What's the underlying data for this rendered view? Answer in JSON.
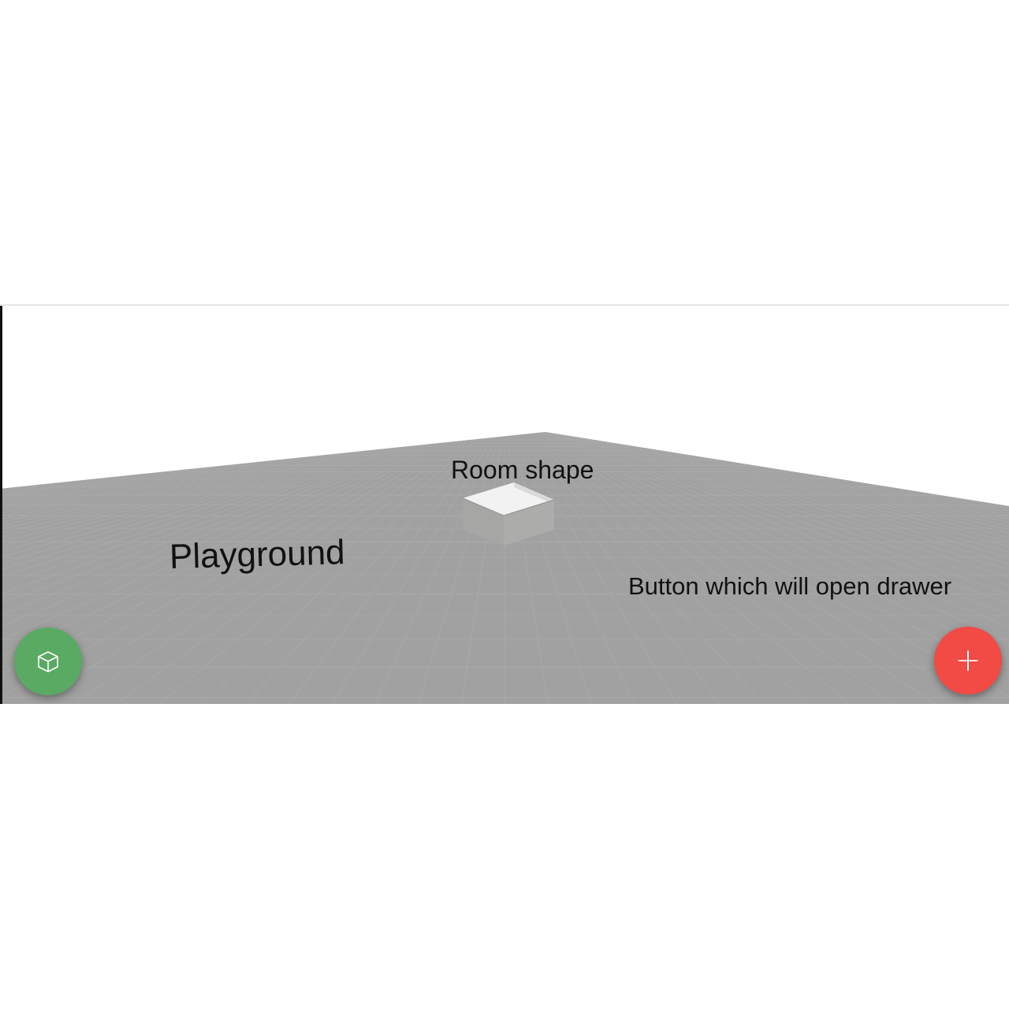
{
  "labels": {
    "room_shape": "Room shape",
    "playground": "Playground",
    "drawer_button": "Button which will open drawer"
  },
  "buttons": {
    "left": {
      "icon": "cube-icon",
      "color": "#5aaa64"
    },
    "right": {
      "icon": "plus-icon",
      "glyph": "+",
      "color": "#f24a44"
    }
  },
  "scene": {
    "floor_color": "#a0a1a0",
    "grid_color": "#b0b1b0",
    "box_side_color": "#a9a9a7",
    "box_inside_color": "#f2f2f2"
  }
}
